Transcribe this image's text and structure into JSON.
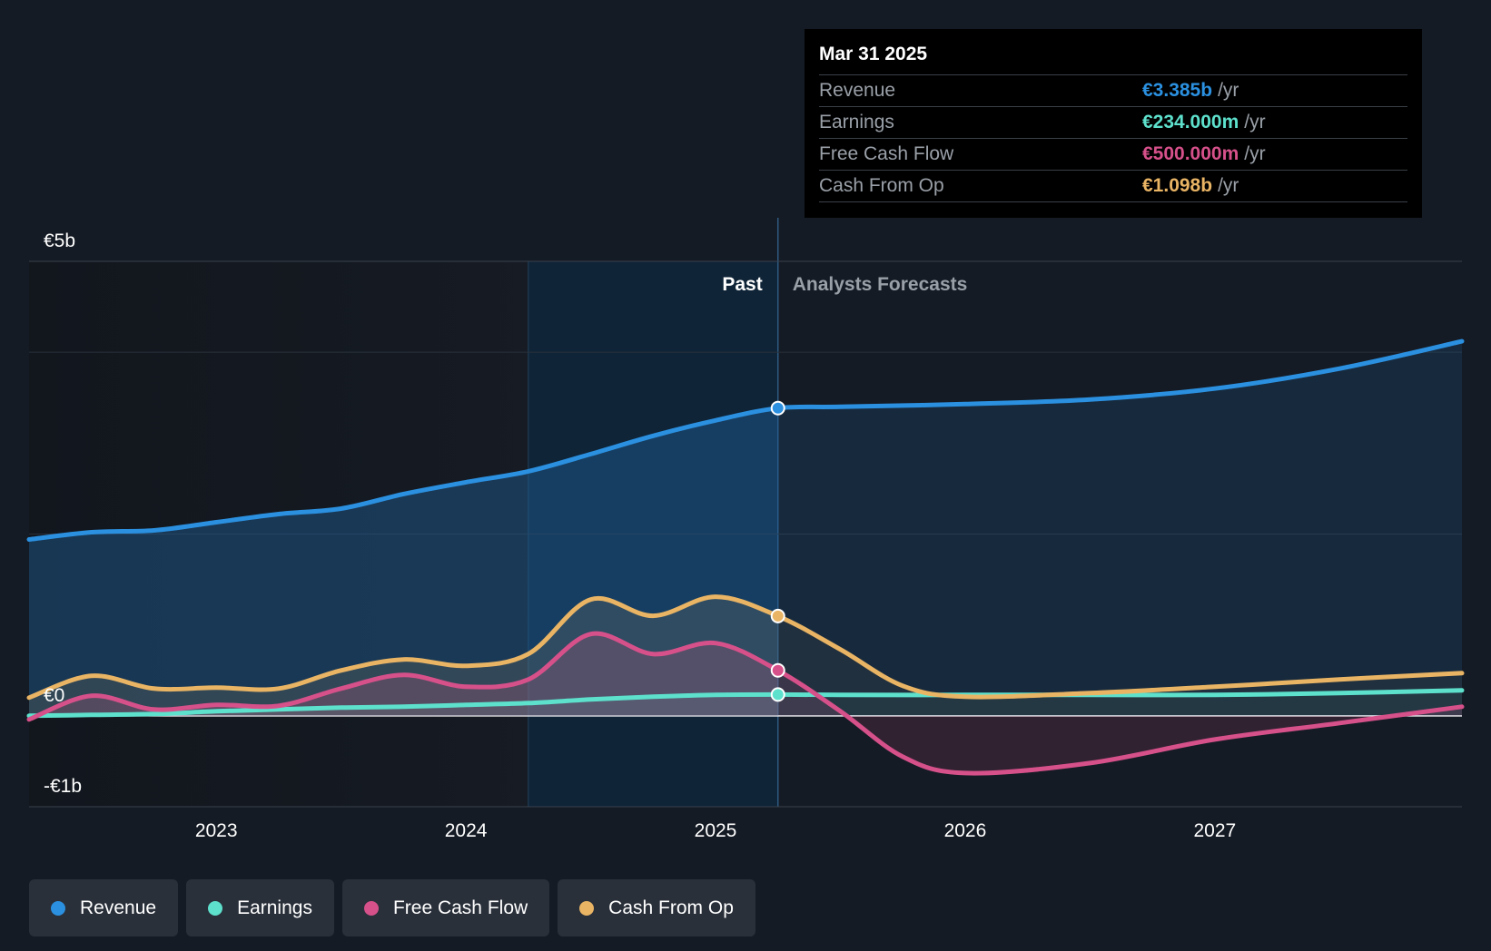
{
  "tooltip": {
    "date": "Mar 31 2025",
    "rows": [
      {
        "label": "Revenue",
        "value": "€3.385b",
        "unit": "/yr",
        "color": "#2b90e0"
      },
      {
        "label": "Earnings",
        "value": "€234.000m",
        "unit": "/yr",
        "color": "#5de0cc"
      },
      {
        "label": "Free Cash Flow",
        "value": "€500.000m",
        "unit": "/yr",
        "color": "#d6508a"
      },
      {
        "label": "Cash From Op",
        "value": "€1.098b",
        "unit": "/yr",
        "color": "#e9b464"
      }
    ]
  },
  "legend": [
    {
      "label": "Revenue",
      "color": "#2b90e0"
    },
    {
      "label": "Earnings",
      "color": "#5de0cc"
    },
    {
      "label": "Free Cash Flow",
      "color": "#d6508a"
    },
    {
      "label": "Cash From Op",
      "color": "#e9b464"
    }
  ],
  "chart_data": {
    "type": "line",
    "title": "",
    "xlabel": "",
    "ylabel": "",
    "x_ticks": [
      "2023",
      "2024",
      "2025",
      "2026",
      "2027"
    ],
    "y_ticks": [
      {
        "label": "€5b",
        "value": 5
      },
      {
        "label": "€0",
        "value": 0
      },
      {
        "label": "-€1b",
        "value": -1
      }
    ],
    "xlim": [
      2022.25,
      2027.99
    ],
    "ylim": [
      -1,
      5
    ],
    "past_label": "Past",
    "forecast_label": "Analysts Forecasts",
    "highlight_start": 2024.25,
    "divider_x": 2025.25,
    "marker_x": 2025.25,
    "series": [
      {
        "name": "Revenue",
        "color": "#2b90e0",
        "past": [
          [
            2022.25,
            1.94
          ],
          [
            2022.5,
            2.02
          ],
          [
            2022.75,
            2.04
          ],
          [
            2023.0,
            2.13
          ],
          [
            2023.25,
            2.22
          ],
          [
            2023.5,
            2.28
          ],
          [
            2023.75,
            2.44
          ],
          [
            2024.0,
            2.57
          ],
          [
            2024.25,
            2.69
          ],
          [
            2024.5,
            2.88
          ],
          [
            2024.75,
            3.08
          ],
          [
            2025.0,
            3.25
          ],
          [
            2025.25,
            3.385
          ]
        ],
        "forecast": [
          [
            2025.25,
            3.385
          ],
          [
            2025.5,
            3.4
          ],
          [
            2026.0,
            3.43
          ],
          [
            2026.5,
            3.48
          ],
          [
            2027.0,
            3.6
          ],
          [
            2027.5,
            3.82
          ],
          [
            2027.99,
            4.12
          ]
        ]
      },
      {
        "name": "Earnings",
        "color": "#5de0cc",
        "past": [
          [
            2022.25,
            0.0
          ],
          [
            2022.5,
            0.01
          ],
          [
            2022.75,
            0.02
          ],
          [
            2023.0,
            0.05
          ],
          [
            2023.25,
            0.07
          ],
          [
            2023.5,
            0.09
          ],
          [
            2023.75,
            0.1
          ],
          [
            2024.0,
            0.12
          ],
          [
            2024.25,
            0.14
          ],
          [
            2024.5,
            0.18
          ],
          [
            2024.75,
            0.21
          ],
          [
            2025.0,
            0.23
          ],
          [
            2025.25,
            0.234
          ]
        ],
        "forecast": [
          [
            2025.25,
            0.234
          ],
          [
            2025.5,
            0.23
          ],
          [
            2026.0,
            0.23
          ],
          [
            2026.5,
            0.23
          ],
          [
            2027.0,
            0.23
          ],
          [
            2027.5,
            0.25
          ],
          [
            2027.99,
            0.28
          ]
        ]
      },
      {
        "name": "Free Cash Flow",
        "color": "#d6508a",
        "past": [
          [
            2022.25,
            -0.04
          ],
          [
            2022.5,
            0.22
          ],
          [
            2022.75,
            0.07
          ],
          [
            2023.0,
            0.12
          ],
          [
            2023.25,
            0.11
          ],
          [
            2023.5,
            0.3
          ],
          [
            2023.75,
            0.45
          ],
          [
            2024.0,
            0.32
          ],
          [
            2024.25,
            0.4
          ],
          [
            2024.5,
            0.9
          ],
          [
            2024.75,
            0.68
          ],
          [
            2025.0,
            0.8
          ],
          [
            2025.25,
            0.5
          ]
        ],
        "forecast": [
          [
            2025.25,
            0.5
          ],
          [
            2025.5,
            0.05
          ],
          [
            2025.75,
            -0.45
          ],
          [
            2026.0,
            -0.63
          ],
          [
            2026.5,
            -0.52
          ],
          [
            2027.0,
            -0.26
          ],
          [
            2027.5,
            -0.08
          ],
          [
            2027.99,
            0.1
          ]
        ]
      },
      {
        "name": "Cash From Op",
        "color": "#e9b464",
        "past": [
          [
            2022.25,
            0.2
          ],
          [
            2022.5,
            0.44
          ],
          [
            2022.75,
            0.3
          ],
          [
            2023.0,
            0.31
          ],
          [
            2023.25,
            0.3
          ],
          [
            2023.5,
            0.5
          ],
          [
            2023.75,
            0.62
          ],
          [
            2024.0,
            0.55
          ],
          [
            2024.25,
            0.68
          ],
          [
            2024.5,
            1.28
          ],
          [
            2024.75,
            1.1
          ],
          [
            2025.0,
            1.31
          ],
          [
            2025.25,
            1.098
          ]
        ],
        "forecast": [
          [
            2025.25,
            1.098
          ],
          [
            2025.5,
            0.73
          ],
          [
            2025.75,
            0.33
          ],
          [
            2026.0,
            0.21
          ],
          [
            2026.5,
            0.25
          ],
          [
            2027.0,
            0.32
          ],
          [
            2027.5,
            0.4
          ],
          [
            2027.99,
            0.47
          ]
        ]
      }
    ]
  }
}
